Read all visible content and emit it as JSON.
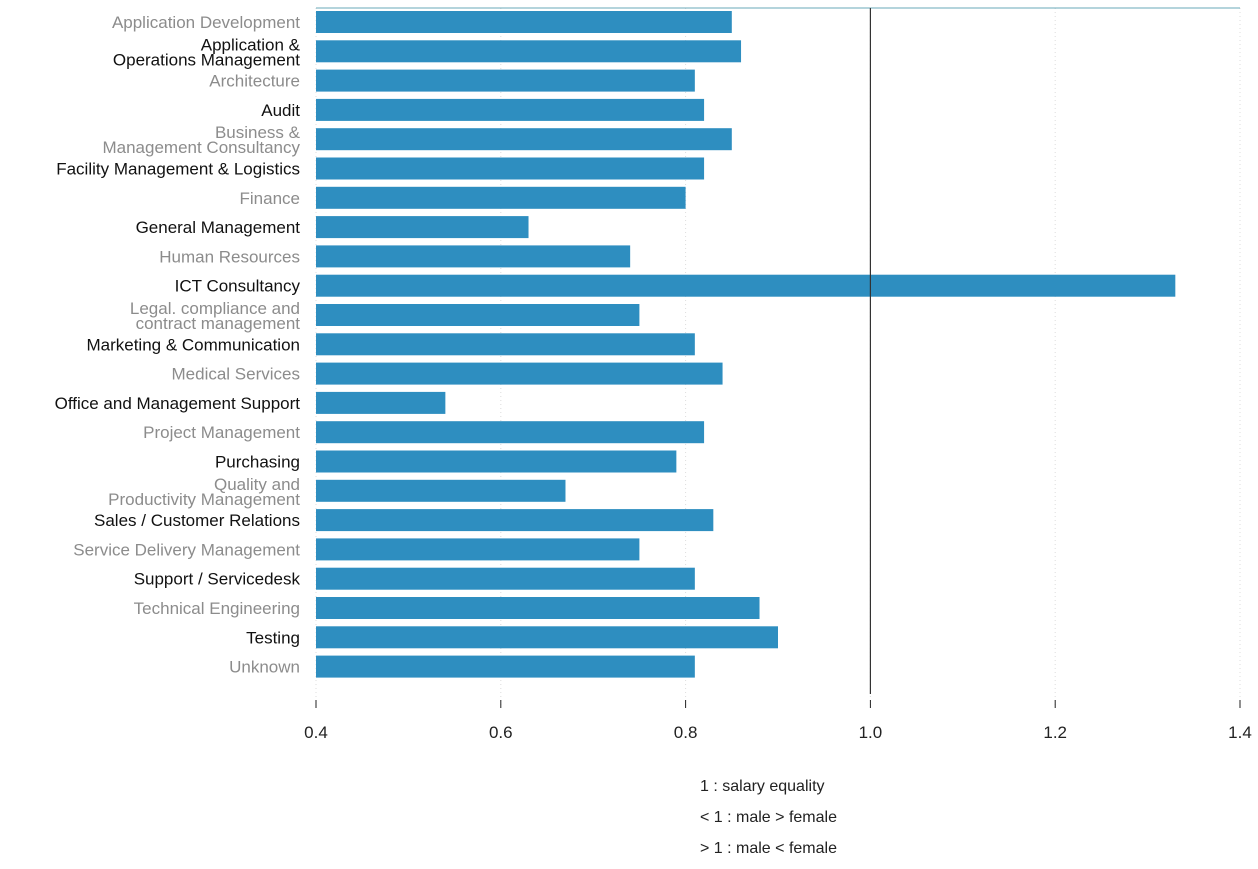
{
  "chart_data": {
    "type": "bar",
    "orientation": "horizontal",
    "categories": [
      "Application Development",
      "Application & Operations Management",
      "Architecture",
      "Audit",
      "Business & Management Consultancy",
      "Facility Management & Logistics",
      "Finance",
      "General Management",
      "Human Resources",
      "ICT Consultancy",
      "Legal. compliance and contract management",
      "Marketing & Communication",
      "Medical Services",
      "Office and Management Support",
      "Project Management",
      "Purchasing",
      "Quality and Productivity Management",
      "Sales / Customer Relations",
      "Service Delivery Management",
      "Support / Servicedesk",
      "Technical Engineering",
      "Testing",
      "Unknown"
    ],
    "category_lines": [
      [
        "Application Development"
      ],
      [
        "Application &",
        "Operations Management"
      ],
      [
        "Architecture"
      ],
      [
        "Audit"
      ],
      [
        "Business &",
        "Management Consultancy"
      ],
      [
        "Facility Management & Logistics"
      ],
      [
        "Finance"
      ],
      [
        "General Management"
      ],
      [
        "Human Resources"
      ],
      [
        "ICT Consultancy"
      ],
      [
        "Legal. compliance and",
        "contract management"
      ],
      [
        "Marketing & Communication"
      ],
      [
        "Medical Services"
      ],
      [
        "Office and Management Support"
      ],
      [
        "Project Management"
      ],
      [
        "Purchasing"
      ],
      [
        "Quality and",
        "Productivity Management"
      ],
      [
        "Sales / Customer Relations"
      ],
      [
        "Service Delivery Management"
      ],
      [
        "Support / Servicedesk"
      ],
      [
        "Technical Engineering"
      ],
      [
        "Testing"
      ],
      [
        "Unknown"
      ]
    ],
    "values": [
      0.85,
      0.86,
      0.81,
      0.82,
      0.85,
      0.82,
      0.8,
      0.63,
      0.74,
      1.33,
      0.75,
      0.81,
      0.84,
      0.54,
      0.82,
      0.79,
      0.67,
      0.83,
      0.75,
      0.81,
      0.88,
      0.9,
      0.81
    ],
    "xlim": [
      0.4,
      1.4
    ],
    "xticks": [
      "0.4",
      "0.6",
      "0.8",
      "1.0",
      "1.2",
      "1.4"
    ],
    "reference_line": 1.0,
    "grid": "vertical-dotted",
    "title": "",
    "xlabel": "",
    "ylabel": "",
    "colors": {
      "bar": "#2e8ec0",
      "label_dark": "#111111",
      "label_muted": "#8c8c8c",
      "axis": "#222222",
      "top_rule": "#6aa9b8"
    }
  },
  "legend": {
    "line1": "1 : salary equality",
    "line2": "< 1 : male > female",
    "line3": "> 1 : male < female"
  }
}
